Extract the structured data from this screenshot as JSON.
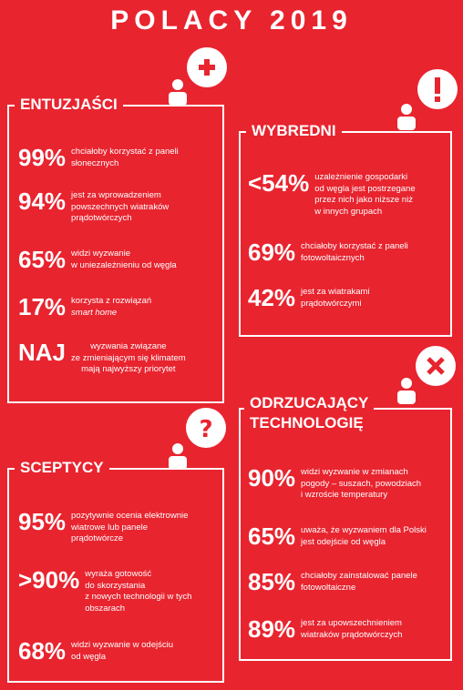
{
  "title": "POLACY 2019",
  "entuzjasci": {
    "heading": "ENTUZJAŚCI",
    "icon": "plus-icon",
    "items": [
      {
        "value": "99%",
        "lines": [
          "chciałoby korzystać z paneli",
          "słonecznych"
        ]
      },
      {
        "value": "94%",
        "lines": [
          "jest za wprowadzeniem",
          "powszechnych wiatraków",
          "prądotwórczych"
        ]
      },
      {
        "value": "65%",
        "lines": [
          "widzi wyzwanie",
          "w uniezależnieniu od węgla"
        ]
      },
      {
        "value": "17%",
        "lines": [
          "korzysta z rozwiązań",
          "smart home"
        ]
      },
      {
        "value": "NAJ",
        "lines": [
          "wyzwania związane",
          "ze zmieniającym się klimatem",
          "mają najwyższy priorytet"
        ]
      }
    ]
  },
  "wybredni": {
    "heading": "WYBREDNI",
    "icon": "exclamation-icon",
    "items": [
      {
        "value": "<54%",
        "lines": [
          "uzależnienie gospodarki",
          "od węgla jest postrzegane",
          "przez nich jako niższe niż",
          "w innych grupach"
        ]
      },
      {
        "value": "69%",
        "lines": [
          "chciałoby korzystać z paneli",
          "fotowoltaicznych"
        ]
      },
      {
        "value": "42%",
        "lines": [
          "jest za wiatrakami",
          "prądotwórczymi"
        ]
      }
    ]
  },
  "odrzucajacy": {
    "heading_line1": "ODRZUCAJĄCY",
    "heading_line2": "TECHNOLOGIĘ",
    "icon": "x-icon",
    "items": [
      {
        "value": "90%",
        "lines": [
          "widzi wyzwanie w zmianach",
          "pogody – suszach, powodziach",
          "i wzroście temperatury"
        ]
      },
      {
        "value": "65%",
        "lines": [
          "uważa, że wyzwaniem dla Polski",
          "jest odejście od węgla"
        ]
      },
      {
        "value": "85%",
        "lines": [
          "chciałoby zainstalować panele",
          "fotowoltaiczne"
        ]
      },
      {
        "value": "89%",
        "lines": [
          "jest za upowszechnieniem",
          "wiatraków prądotwórczych"
        ]
      }
    ]
  },
  "sceptycy": {
    "heading": "SCEPTYCY",
    "icon": "question-icon",
    "items": [
      {
        "value": "95%",
        "lines": [
          "pozytywnie ocenia elektrownie",
          "wiatrowe lub panele",
          "prądotwórcze"
        ]
      },
      {
        "value": ">90%",
        "lines": [
          "wyraża gotowość",
          "do skorzystania",
          "z nowych technologii w tych",
          "obszarach"
        ]
      },
      {
        "value": "68%",
        "lines": [
          "widzi wyzwanie w odejściu",
          "od węgla"
        ]
      }
    ]
  }
}
